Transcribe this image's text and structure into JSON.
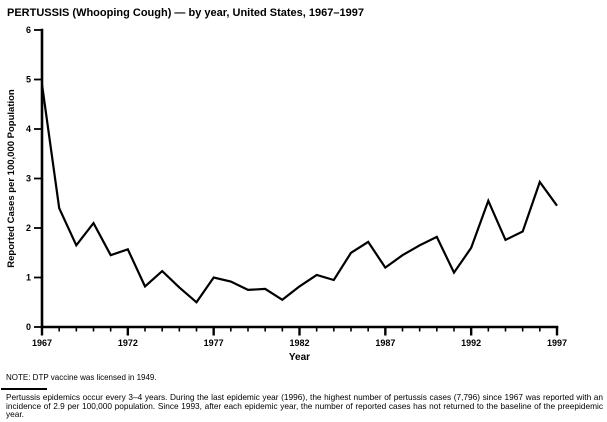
{
  "page": {
    "title": "PERTUSSIS (Whooping Cough) — by year, United States, 1967–1997",
    "note": "NOTE: DTP vaccine was licensed in 1949.",
    "footnote": "Pertussis epidemics occur every 3–4 years. During the last epidemic year (1996), the highest number of pertussis cases (7,796) since 1967 was reported with an incidence of 2.9 per 100,000 population. Since 1993, after each epidemic year, the number of reported cases has not returned to the baseline of the preepidemic year."
  },
  "chart_data": {
    "type": "line",
    "title": "PERTUSSIS (Whooping Cough) — by year, United States, 1967–1997",
    "xlabel": "Year",
    "ylabel": "Reported Cases per 100,000 Population",
    "xlim": [
      1967,
      1997
    ],
    "ylim": [
      0,
      6
    ],
    "yticks": [
      0,
      1,
      2,
      3,
      4,
      5,
      6
    ],
    "xticks_major": [
      1967,
      1972,
      1977,
      1982,
      1987,
      1992,
      1997
    ],
    "grid": false,
    "legend": "none",
    "line_color": "#000000",
    "x": [
      1967,
      1968,
      1969,
      1970,
      1971,
      1972,
      1973,
      1974,
      1975,
      1976,
      1977,
      1978,
      1979,
      1980,
      1981,
      1982,
      1983,
      1984,
      1985,
      1986,
      1987,
      1988,
      1989,
      1990,
      1991,
      1992,
      1993,
      1994,
      1995,
      1996,
      1997
    ],
    "values": [
      4.9,
      2.4,
      1.65,
      2.1,
      1.45,
      1.57,
      0.82,
      1.13,
      0.8,
      0.5,
      1.0,
      0.92,
      0.75,
      0.77,
      0.55,
      0.82,
      1.05,
      0.95,
      1.5,
      1.72,
      1.2,
      1.45,
      1.65,
      1.82,
      1.1,
      1.6,
      2.55,
      1.76,
      1.93,
      2.93,
      2.45
    ]
  }
}
